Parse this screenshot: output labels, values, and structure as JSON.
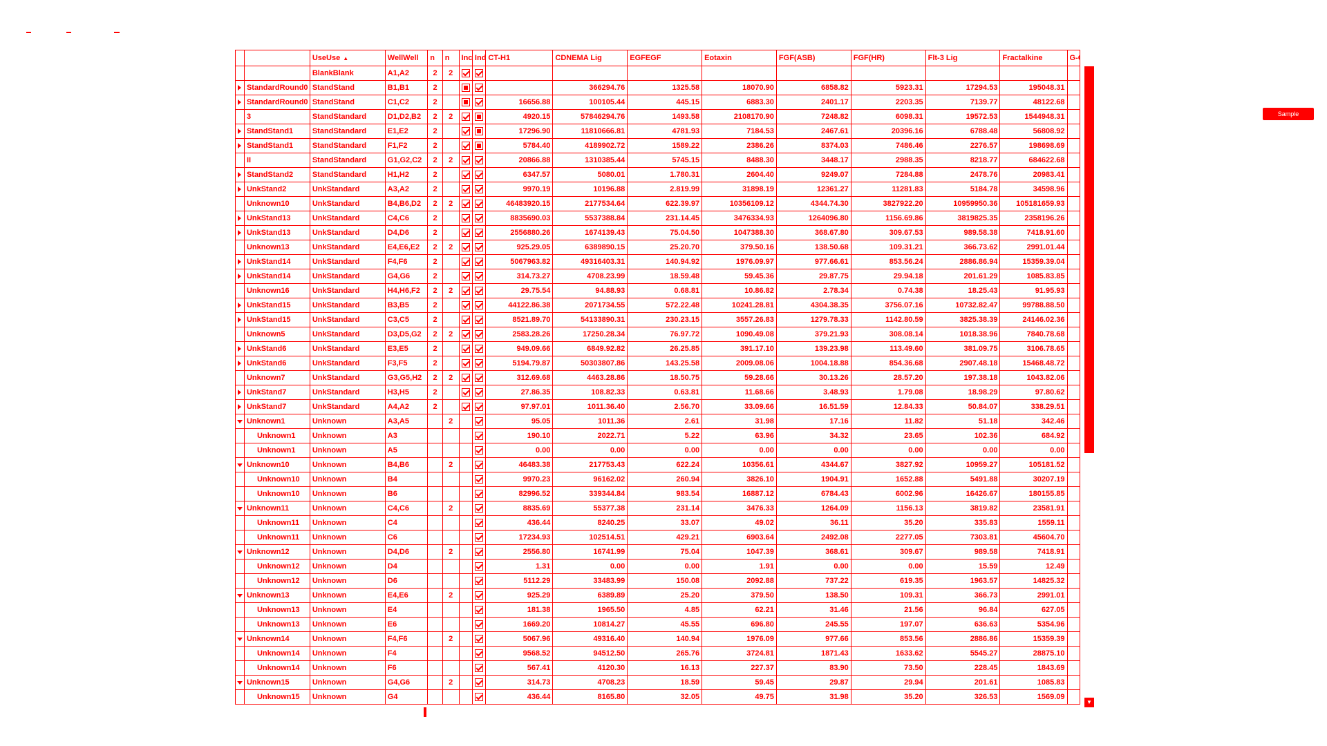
{
  "topbar": {
    "badge_label": "Sample"
  },
  "grid": {
    "headers": [
      "",
      "UseUse",
      "UseUse",
      "WellWell",
      "n",
      "n",
      "Inc",
      "Ind",
      "CT-H1",
      "CDNEMA Lig",
      "EGFEGF",
      "Eotaxin",
      "FGF(ASB)",
      "FGF(HR)",
      "Flt-3 Lig",
      "Fractalkine",
      "G-CSF"
    ],
    "rows": [
      {
        "exp": "",
        "name": "",
        "use": "BlankBlank",
        "well": "A1,A2",
        "n1": "2",
        "n2": "2",
        "inc": "checked",
        "ind": "checked",
        "v": [
          "",
          "",
          "",
          "",
          "",
          "",
          "",
          ""
        ]
      },
      {
        "exp": ">",
        "name": "StandardRound0",
        "use": "StandStand",
        "well": "B1,B1",
        "n1": "2",
        "n2": "",
        "inc": "filled",
        "ind": "checked",
        "v": [
          "",
          "366294.76",
          "1325.58",
          "18070.90",
          "6858.82",
          "5923.31",
          "17294.53",
          "195048.31"
        ]
      },
      {
        "exp": ">",
        "name": "StandardRound0",
        "use": "StandStand",
        "well": "C1,C2",
        "n1": "2",
        "n2": "",
        "inc": "filled",
        "ind": "checked",
        "v": [
          "16656.88",
          "100105.44",
          "445.15",
          "6883.30",
          "2401.17",
          "2203.35",
          "7139.77",
          "48122.68"
        ]
      },
      {
        "exp": "",
        "name": "3",
        "use": "StandStandard",
        "well": "D1,D2,B2",
        "n1": "2",
        "n2": "2",
        "inc": "checked",
        "ind": "filled",
        "v": [
          "4920.15",
          "57846294.76",
          "1493.58",
          "2108170.90",
          "7248.82",
          "6098.31",
          "19572.53",
          "1544948.31"
        ]
      },
      {
        "exp": ">",
        "name": "StandStand1",
        "use": "StandStandard",
        "well": "E1,E2",
        "n1": "2",
        "n2": "",
        "inc": "checked",
        "ind": "filled",
        "v": [
          "17296.90",
          "11810666.81",
          "4781.93",
          "7184.53",
          "2467.61",
          "20396.16",
          "6788.48",
          "56808.92"
        ]
      },
      {
        "exp": ">",
        "name": "StandStand1",
        "use": "StandStandard",
        "well": "F1,F2",
        "n1": "2",
        "n2": "",
        "inc": "checked",
        "ind": "filled",
        "v": [
          "5784.40",
          "4189902.72",
          "1589.22",
          "2386.26",
          "8374.03",
          "7486.46",
          "2276.57",
          "198698.69"
        ]
      },
      {
        "exp": "",
        "name": "II",
        "use": "StandStandard",
        "well": "G1,G2,C2",
        "n1": "2",
        "n2": "2",
        "inc": "checked",
        "ind": "checked",
        "v": [
          "20866.88",
          "1310385.44",
          "5745.15",
          "8488.30",
          "3448.17",
          "2988.35",
          "8218.77",
          "684622.68"
        ]
      },
      {
        "exp": ">",
        "name": "StandStand2",
        "use": "StandStandard",
        "well": "H1,H2",
        "n1": "2",
        "n2": "",
        "inc": "checked",
        "ind": "checked",
        "v": [
          "6347.57",
          "5080.01",
          "1.780.31",
          "2604.40",
          "9249.07",
          "7284.88",
          "2478.76",
          "20983.41"
        ]
      },
      {
        "exp": ">",
        "name": "UnkStand2",
        "use": "UnkStandard",
        "well": "A3,A2",
        "n1": "2",
        "n2": "",
        "inc": "checked",
        "ind": "checked",
        "v": [
          "9970.19",
          "10196.88",
          "2.819.99",
          "31898.19",
          "12361.27",
          "11281.83",
          "5184.78",
          "34598.96"
        ]
      },
      {
        "exp": "",
        "name": "Unknown10",
        "use": "UnkStandard",
        "well": "B4,B6,D2",
        "n1": "2",
        "n2": "2",
        "inc": "checked",
        "ind": "checked",
        "v": [
          "46483920.15",
          "2177534.64",
          "622.39.97",
          "10356109.12",
          "4344.74.30",
          "3827922.20",
          "10959950.36",
          "105181659.93"
        ]
      },
      {
        "exp": ">",
        "name": "UnkStand13",
        "use": "UnkStandard",
        "well": "C4,C6",
        "n1": "2",
        "n2": "",
        "inc": "checked",
        "ind": "checked",
        "v": [
          "8835690.03",
          "5537388.84",
          "231.14.45",
          "3476334.93",
          "1264096.80",
          "1156.69.86",
          "3819825.35",
          "2358196.26"
        ]
      },
      {
        "exp": ">",
        "name": "UnkStand13",
        "use": "UnkStandard",
        "well": "D4,D6",
        "n1": "2",
        "n2": "",
        "inc": "checked",
        "ind": "checked",
        "v": [
          "2556880.26",
          "1674139.43",
          "75.04.50",
          "1047388.30",
          "368.67.80",
          "309.67.53",
          "989.58.38",
          "7418.91.60"
        ]
      },
      {
        "exp": "",
        "name": "Unknown13",
        "use": "UnkStandard",
        "well": "E4,E6,E2",
        "n1": "2",
        "n2": "2",
        "inc": "checked",
        "ind": "checked",
        "v": [
          "925.29.05",
          "6389890.15",
          "25.20.70",
          "379.50.16",
          "138.50.68",
          "109.31.21",
          "366.73.62",
          "2991.01.44"
        ]
      },
      {
        "exp": ">",
        "name": "UnkStand14",
        "use": "UnkStandard",
        "well": "F4,F6",
        "n1": "2",
        "n2": "",
        "inc": "checked",
        "ind": "checked",
        "v": [
          "5067963.82",
          "49316403.31",
          "140.94.92",
          "1976.09.97",
          "977.66.61",
          "853.56.24",
          "2886.86.94",
          "15359.39.04"
        ]
      },
      {
        "exp": ">",
        "name": "UnkStand14",
        "use": "UnkStandard",
        "well": "G4,G6",
        "n1": "2",
        "n2": "",
        "inc": "checked",
        "ind": "checked",
        "v": [
          "314.73.27",
          "4708.23.99",
          "18.59.48",
          "59.45.36",
          "29.87.75",
          "29.94.18",
          "201.61.29",
          "1085.83.85"
        ]
      },
      {
        "exp": "",
        "name": "Unknown16",
        "use": "UnkStandard",
        "well": "H4,H6,F2",
        "n1": "2",
        "n2": "2",
        "inc": "checked",
        "ind": "checked",
        "v": [
          "29.75.54",
          "94.88.93",
          "0.68.81",
          "10.86.82",
          "2.78.34",
          "0.74.38",
          "18.25.43",
          "91.95.93"
        ]
      },
      {
        "exp": ">",
        "name": "UnkStand15",
        "use": "UnkStandard",
        "well": "B3,B5",
        "n1": "2",
        "n2": "",
        "inc": "checked",
        "ind": "checked",
        "v": [
          "44122.86.38",
          "2071734.55",
          "572.22.48",
          "10241.28.81",
          "4304.38.35",
          "3756.07.16",
          "10732.82.47",
          "99788.88.50"
        ]
      },
      {
        "exp": ">",
        "name": "UnkStand15",
        "use": "UnkStandard",
        "well": "C3,C5",
        "n1": "2",
        "n2": "",
        "inc": "checked",
        "ind": "checked",
        "v": [
          "8521.89.70",
          "54133890.31",
          "230.23.15",
          "3557.26.83",
          "1279.78.33",
          "1142.80.59",
          "3825.38.39",
          "24146.02.36"
        ]
      },
      {
        "exp": "",
        "name": "Unknown5",
        "use": "UnkStandard",
        "well": "D3,D5,G2",
        "n1": "2",
        "n2": "2",
        "inc": "checked",
        "ind": "checked",
        "v": [
          "2583.28.26",
          "17250.28.34",
          "76.97.72",
          "1090.49.08",
          "379.21.93",
          "308.08.14",
          "1018.38.96",
          "7840.78.68"
        ]
      },
      {
        "exp": ">",
        "name": "UnkStand6",
        "use": "UnkStandard",
        "well": "E3,E5",
        "n1": "2",
        "n2": "",
        "inc": "checked",
        "ind": "checked",
        "v": [
          "949.09.66",
          "6849.92.82",
          "26.25.85",
          "391.17.10",
          "139.23.98",
          "113.49.60",
          "381.09.75",
          "3106.78.65"
        ]
      },
      {
        "exp": ">",
        "name": "UnkStand6",
        "use": "UnkStandard",
        "well": "F3,F5",
        "n1": "2",
        "n2": "",
        "inc": "checked",
        "ind": "checked",
        "v": [
          "5194.79.87",
          "50303807.86",
          "143.25.58",
          "2009.08.06",
          "1004.18.88",
          "854.36.68",
          "2907.48.18",
          "15468.48.72"
        ]
      },
      {
        "exp": "",
        "name": "Unknown7",
        "use": "UnkStandard",
        "well": "G3,G5,H2",
        "n1": "2",
        "n2": "2",
        "inc": "checked",
        "ind": "checked",
        "v": [
          "312.69.68",
          "4463.28.86",
          "18.50.75",
          "59.28.66",
          "30.13.26",
          "28.57.20",
          "197.38.18",
          "1043.82.06"
        ]
      },
      {
        "exp": ">",
        "name": "UnkStand7",
        "use": "UnkStandard",
        "well": "H3,H5",
        "n1": "2",
        "n2": "",
        "inc": "checked",
        "ind": "checked",
        "v": [
          "27.86.35",
          "108.82.33",
          "0.63.81",
          "11.68.66",
          "3.48.93",
          "1.79.08",
          "18.98.29",
          "97.80.62"
        ]
      },
      {
        "exp": ">",
        "name": "UnkStand7",
        "use": "UnkStandard",
        "well": "A4,A2",
        "n1": "2",
        "n2": "",
        "inc": "checked",
        "ind": "checked",
        "v": [
          "97.97.01",
          "1011.36.40",
          "2.56.70",
          "33.09.66",
          "16.51.59",
          "12.84.33",
          "50.84.07",
          "338.29.51"
        ]
      },
      {
        "exp": "v",
        "name": "Unknown1",
        "use": "Unknown",
        "well": "A3,A5",
        "n1": "",
        "n2": "2",
        "inc": "",
        "ind": "checked",
        "v": [
          "95.05",
          "1011.36",
          "2.61",
          "31.98",
          "17.16",
          "11.82",
          "51.18",
          "342.46"
        ]
      },
      {
        "exp": "",
        "child": true,
        "name": "Unknown1",
        "use": "Unknown",
        "well": "A3",
        "n1": "",
        "n2": "",
        "inc": "",
        "ind": "checked",
        "v": [
          "190.10",
          "2022.71",
          "5.22",
          "63.96",
          "34.32",
          "23.65",
          "102.36",
          "684.92"
        ]
      },
      {
        "exp": "",
        "child": true,
        "name": "Unknown1",
        "use": "Unknown",
        "well": "A5",
        "n1": "",
        "n2": "",
        "inc": "",
        "ind": "checked",
        "v": [
          "0.00",
          "0.00",
          "0.00",
          "0.00",
          "0.00",
          "0.00",
          "0.00",
          "0.00"
        ]
      },
      {
        "exp": "v",
        "name": "Unknown10",
        "use": "Unknown",
        "well": "B4,B6",
        "n1": "",
        "n2": "2",
        "inc": "",
        "ind": "checked",
        "v": [
          "46483.38",
          "217753.43",
          "622.24",
          "10356.61",
          "4344.67",
          "3827.92",
          "10959.27",
          "105181.52"
        ]
      },
      {
        "exp": "",
        "child": true,
        "name": "Unknown10",
        "use": "Unknown",
        "well": "B4",
        "n1": "",
        "n2": "",
        "inc": "",
        "ind": "checked",
        "v": [
          "9970.23",
          "96162.02",
          "260.94",
          "3826.10",
          "1904.91",
          "1652.88",
          "5491.88",
          "30207.19"
        ]
      },
      {
        "exp": "",
        "child": true,
        "name": "Unknown10",
        "use": "Unknown",
        "well": "B6",
        "n1": "",
        "n2": "",
        "inc": "",
        "ind": "checked",
        "v": [
          "82996.52",
          "339344.84",
          "983.54",
          "16887.12",
          "6784.43",
          "6002.96",
          "16426.67",
          "180155.85"
        ]
      },
      {
        "exp": "v",
        "name": "Unknown11",
        "use": "Unknown",
        "well": "C4,C6",
        "n1": "",
        "n2": "2",
        "inc": "",
        "ind": "checked",
        "v": [
          "8835.69",
          "55377.38",
          "231.14",
          "3476.33",
          "1264.09",
          "1156.13",
          "3819.82",
          "23581.91"
        ]
      },
      {
        "exp": "",
        "child": true,
        "name": "Unknown11",
        "use": "Unknown",
        "well": "C4",
        "n1": "",
        "n2": "",
        "inc": "",
        "ind": "checked",
        "v": [
          "436.44",
          "8240.25",
          "33.07",
          "49.02",
          "36.11",
          "35.20",
          "335.83",
          "1559.11"
        ]
      },
      {
        "exp": "",
        "child": true,
        "name": "Unknown11",
        "use": "Unknown",
        "well": "C6",
        "n1": "",
        "n2": "",
        "inc": "",
        "ind": "checked",
        "v": [
          "17234.93",
          "102514.51",
          "429.21",
          "6903.64",
          "2492.08",
          "2277.05",
          "7303.81",
          "45604.70"
        ]
      },
      {
        "exp": "v",
        "name": "Unknown12",
        "use": "Unknown",
        "well": "D4,D6",
        "n1": "",
        "n2": "2",
        "inc": "",
        "ind": "checked",
        "v": [
          "2556.80",
          "16741.99",
          "75.04",
          "1047.39",
          "368.61",
          "309.67",
          "989.58",
          "7418.91"
        ]
      },
      {
        "exp": "",
        "child": true,
        "name": "Unknown12",
        "use": "Unknown",
        "well": "D4",
        "n1": "",
        "n2": "",
        "inc": "",
        "ind": "checked",
        "v": [
          "1.31",
          "0.00",
          "0.00",
          "1.91",
          "0.00",
          "0.00",
          "15.59",
          "12.49"
        ]
      },
      {
        "exp": "",
        "child": true,
        "name": "Unknown12",
        "use": "Unknown",
        "well": "D6",
        "n1": "",
        "n2": "",
        "inc": "",
        "ind": "checked",
        "v": [
          "5112.29",
          "33483.99",
          "150.08",
          "2092.88",
          "737.22",
          "619.35",
          "1963.57",
          "14825.32"
        ]
      },
      {
        "exp": "v",
        "name": "Unknown13",
        "use": "Unknown",
        "well": "E4,E6",
        "n1": "",
        "n2": "2",
        "inc": "",
        "ind": "checked",
        "v": [
          "925.29",
          "6389.89",
          "25.20",
          "379.50",
          "138.50",
          "109.31",
          "366.73",
          "2991.01"
        ]
      },
      {
        "exp": "",
        "child": true,
        "name": "Unknown13",
        "use": "Unknown",
        "well": "E4",
        "n1": "",
        "n2": "",
        "inc": "",
        "ind": "checked",
        "v": [
          "181.38",
          "1965.50",
          "4.85",
          "62.21",
          "31.46",
          "21.56",
          "96.84",
          "627.05"
        ]
      },
      {
        "exp": "",
        "child": true,
        "name": "Unknown13",
        "use": "Unknown",
        "well": "E6",
        "n1": "",
        "n2": "",
        "inc": "",
        "ind": "checked",
        "v": [
          "1669.20",
          "10814.27",
          "45.55",
          "696.80",
          "245.55",
          "197.07",
          "636.63",
          "5354.96"
        ]
      },
      {
        "exp": "v",
        "name": "Unknown14",
        "use": "Unknown",
        "well": "F4,F6",
        "n1": "",
        "n2": "2",
        "inc": "",
        "ind": "checked",
        "v": [
          "5067.96",
          "49316.40",
          "140.94",
          "1976.09",
          "977.66",
          "853.56",
          "2886.86",
          "15359.39"
        ]
      },
      {
        "exp": "",
        "child": true,
        "name": "Unknown14",
        "use": "Unknown",
        "well": "F4",
        "n1": "",
        "n2": "",
        "inc": "",
        "ind": "checked",
        "v": [
          "9568.52",
          "94512.50",
          "265.76",
          "3724.81",
          "1871.43",
          "1633.62",
          "5545.27",
          "28875.10"
        ]
      },
      {
        "exp": "",
        "child": true,
        "name": "Unknown14",
        "use": "Unknown",
        "well": "F6",
        "n1": "",
        "n2": "",
        "inc": "",
        "ind": "checked",
        "v": [
          "567.41",
          "4120.30",
          "16.13",
          "227.37",
          "83.90",
          "73.50",
          "228.45",
          "1843.69"
        ]
      },
      {
        "exp": "v",
        "name": "Unknown15",
        "use": "Unknown",
        "well": "G4,G6",
        "n1": "",
        "n2": "2",
        "inc": "",
        "ind": "checked",
        "v": [
          "314.73",
          "4708.23",
          "18.59",
          "59.45",
          "29.87",
          "29.94",
          "201.61",
          "1085.83"
        ]
      },
      {
        "exp": "",
        "child": true,
        "name": "Unknown15",
        "use": "Unknown",
        "well": "G4",
        "n1": "",
        "n2": "",
        "inc": "",
        "ind": "checked",
        "v": [
          "436.44",
          "8165.80",
          "32.05",
          "49.75",
          "31.98",
          "35.20",
          "326.53",
          "1569.09"
        ]
      }
    ]
  }
}
